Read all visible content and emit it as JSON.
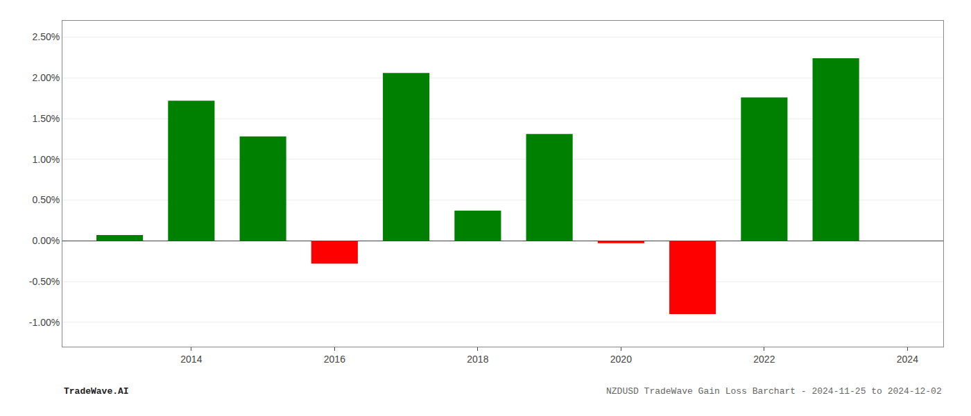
{
  "chart_data": {
    "type": "bar",
    "title": "NZDUSD TradeWave Gain Loss Barchart - 2024-11-25 to 2024-12-02",
    "annotations": [
      "TradeWave.AI"
    ],
    "x": [
      2013,
      2014,
      2015,
      2016,
      2017,
      2018,
      2019,
      2020,
      2021,
      2022,
      2023
    ],
    "values": [
      0.0007,
      0.0172,
      0.0128,
      -0.0028,
      0.0206,
      0.0037,
      0.0131,
      -0.0003,
      -0.009,
      0.0176,
      0.0224
    ],
    "colors": [
      "#008000",
      "#008000",
      "#008000",
      "#ff0000",
      "#008000",
      "#008000",
      "#008000",
      "#ff0000",
      "#ff0000",
      "#008000",
      "#008000"
    ],
    "xlim": [
      2012.2,
      2024.5
    ],
    "xticks": [
      2014,
      2016,
      2018,
      2020,
      2022,
      2024
    ],
    "ylim": [
      -0.013,
      0.027
    ],
    "yticks": [
      {
        "value": -0.01,
        "label": "-1.00%"
      },
      {
        "value": -0.005,
        "label": "-0.50%"
      },
      {
        "value": 0.0,
        "label": "0.00%"
      },
      {
        "value": 0.005,
        "label": "0.50%"
      },
      {
        "value": 0.01,
        "label": "1.00%"
      },
      {
        "value": 0.015,
        "label": "1.50%"
      },
      {
        "value": 0.02,
        "label": "2.00%"
      },
      {
        "value": 0.025,
        "label": "2.50%"
      }
    ],
    "grid": "y"
  }
}
